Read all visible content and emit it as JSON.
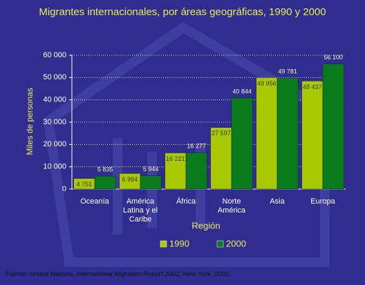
{
  "chart_data": {
    "type": "bar",
    "title": "Migrantes internacionales, por áreas geográficas, 1990 y 2000",
    "categories": [
      "Oceanía",
      "América Latina y el Caribe",
      "África",
      "Norte América",
      "Asia",
      "Europa"
    ],
    "series": [
      {
        "name": "1990",
        "color": "#a8c800",
        "values": [
          4751,
          6994,
          16221,
          27597,
          49956,
          48437
        ],
        "value_labels": [
          "4 751",
          "6 994",
          "16 221",
          "27 597",
          "49 956",
          "48 437"
        ]
      },
      {
        "name": "2000",
        "color": "#0a7a1a",
        "values": [
          5835,
          5944,
          16277,
          40844,
          49781,
          56100
        ],
        "value_labels": [
          "5 835",
          "5 944",
          "16 277",
          "40 844",
          "49 781",
          "56 100"
        ]
      }
    ],
    "ylim": [
      0,
      60000
    ],
    "yticks": [
      0,
      {
        "value": 10000,
        "label": "10 000"
      },
      {
        "value": 20000,
        "label": "20 000"
      },
      {
        "value": 30000,
        "label": "30 000"
      },
      {
        "value": 40000,
        "label": "40 000"
      },
      {
        "value": 50000,
        "label": "50 000"
      },
      {
        "value": 60000,
        "label": "60 000"
      }
    ],
    "y_label": "Miles de personas",
    "x_label": "Región",
    "grid": true,
    "source": [
      "Fuente: United Nations, ",
      "International Migration Report 2002",
      ", New York, 2002."
    ]
  }
}
